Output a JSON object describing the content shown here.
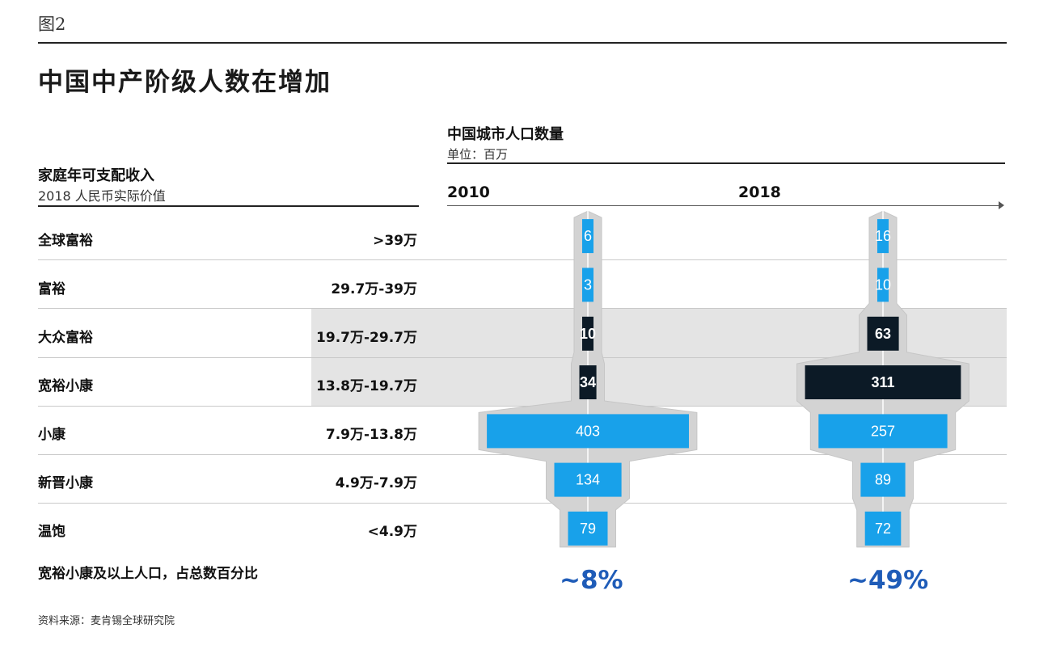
{
  "figure_label": "图2",
  "title": "中国中产阶级人数在增加",
  "left_header": {
    "title": "家庭年可支配收入",
    "subtitle": "2018 人民币实际价值"
  },
  "right_header": {
    "title": "中国城市人口数量",
    "unit": "单位：百万"
  },
  "share_label": "宽裕小康及以上人口，占总数百分比",
  "source": "资料来源：麦肯锡全球研究院",
  "colors": {
    "light_bar": "#18a1ea",
    "dark_bar": "#0c1a26",
    "silhouette": "#d3d3d3",
    "shade_band": "#e4e4e4",
    "percent_text": "#1f5cb8"
  },
  "chart_data": {
    "type": "bar",
    "orientation": "horizontal-centered",
    "years": [
      "2010",
      "2018"
    ],
    "categories": [
      {
        "label": "全球富裕",
        "range": ">39万",
        "tone": "light"
      },
      {
        "label": "富裕",
        "range": "29.7万-39万",
        "tone": "light"
      },
      {
        "label": "大众富裕",
        "range": "19.7万-29.7万",
        "tone": "dark"
      },
      {
        "label": "宽裕小康",
        "range": "13.8万-19.7万",
        "tone": "dark"
      },
      {
        "label": "小康",
        "range": "7.9万-13.8万",
        "tone": "light"
      },
      {
        "label": "新晋小康",
        "range": "4.9万-7.9万",
        "tone": "light"
      },
      {
        "label": "温饱",
        "range": "<4.9万",
        "tone": "light"
      }
    ],
    "series": [
      {
        "name": "2010",
        "values": [
          6,
          3,
          10,
          34,
          403,
          134,
          79
        ],
        "share_label": "~8%"
      },
      {
        "name": "2018",
        "values": [
          16,
          10,
          63,
          311,
          257,
          89,
          72
        ],
        "share_label": "~49%"
      }
    ],
    "highlighted_categories": [
      "大众富裕",
      "宽裕小康"
    ]
  }
}
